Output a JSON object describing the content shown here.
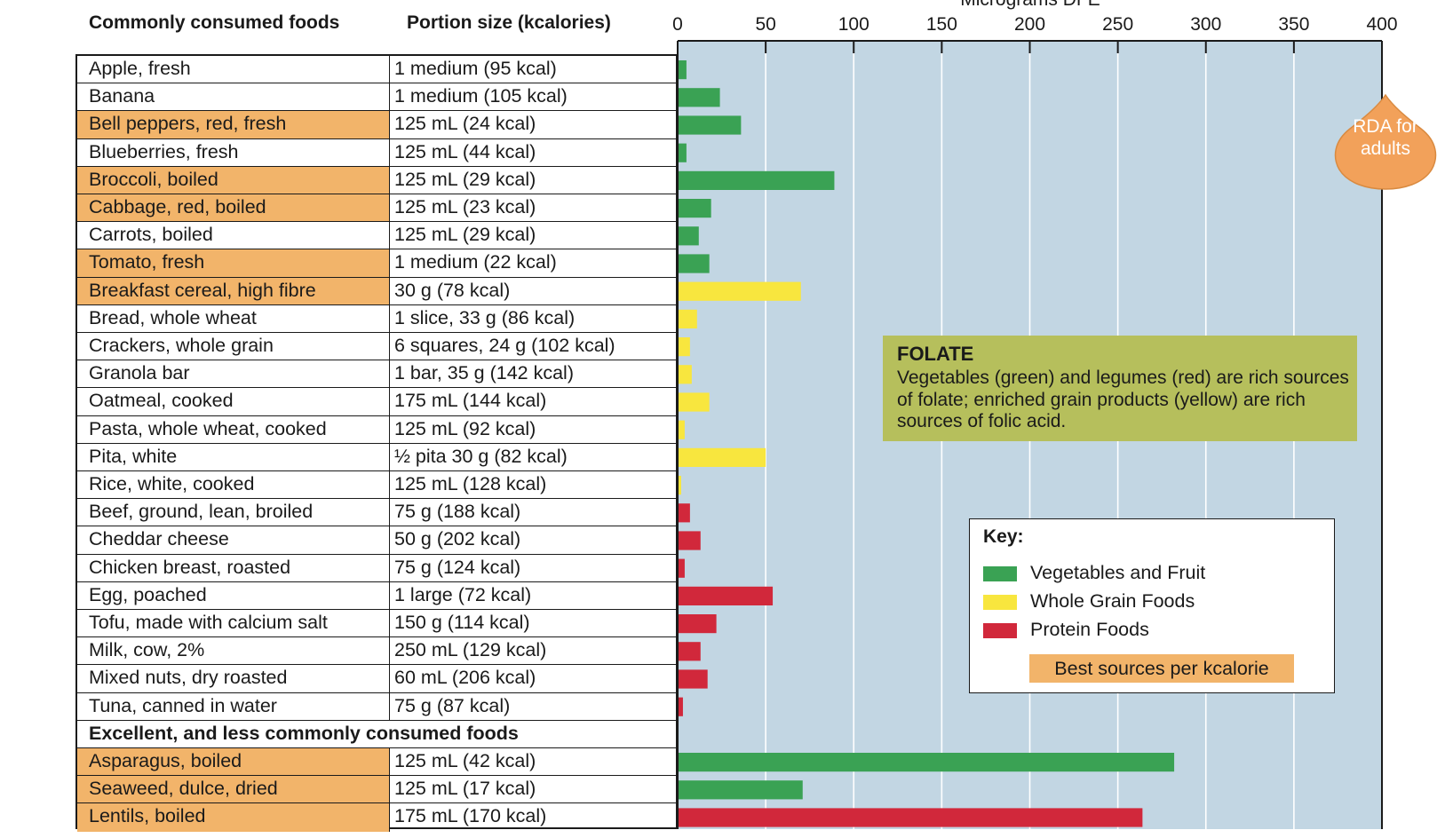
{
  "headers": {
    "food": "Commonly consumed foods",
    "portion": "Portion size (kcalories)"
  },
  "chart_data": {
    "type": "bar",
    "orientation": "horizontal",
    "xlabel": "Micrograms DFE",
    "xlim": [
      0,
      400
    ],
    "xticks": [
      0,
      50,
      100,
      150,
      200,
      250,
      300,
      350,
      400
    ],
    "rda_value": 400,
    "rda_label": "RDA for adults",
    "rows": [
      {
        "food": "Apple, fresh",
        "portion": "1 medium (95 kcal)",
        "value": 5,
        "group": "veg",
        "best": false
      },
      {
        "food": "Banana",
        "portion": "1 medium (105 kcal)",
        "value": 24,
        "group": "veg",
        "best": false
      },
      {
        "food": "Bell peppers, red, fresh",
        "portion": "125 mL (24 kcal)",
        "value": 36,
        "group": "veg",
        "best": true
      },
      {
        "food": "Blueberries, fresh",
        "portion": "125 mL (44 kcal)",
        "value": 5,
        "group": "veg",
        "best": false
      },
      {
        "food": "Broccoli, boiled",
        "portion": "125 mL (29 kcal)",
        "value": 89,
        "group": "veg",
        "best": true
      },
      {
        "food": "Cabbage, red, boiled",
        "portion": "125 mL (23 kcal)",
        "value": 19,
        "group": "veg",
        "best": true
      },
      {
        "food": "Carrots, boiled",
        "portion": "125 mL (29 kcal)",
        "value": 12,
        "group": "veg",
        "best": false
      },
      {
        "food": "Tomato, fresh",
        "portion": "1 medium (22 kcal)",
        "value": 18,
        "group": "veg",
        "best": true
      },
      {
        "food": "Breakfast cereal, high fibre",
        "portion": "30 g (78 kcal)",
        "value": 70,
        "group": "grain",
        "best": true
      },
      {
        "food": "Bread, whole wheat",
        "portion": "1 slice, 33 g (86 kcal)",
        "value": 11,
        "group": "grain",
        "best": false
      },
      {
        "food": "Crackers, whole grain",
        "portion": "6 squares, 24 g (102 kcal)",
        "value": 7,
        "group": "grain",
        "best": false
      },
      {
        "food": "Granola bar",
        "portion": "1 bar, 35 g (142 kcal)",
        "value": 8,
        "group": "grain",
        "best": false
      },
      {
        "food": "Oatmeal, cooked",
        "portion": "175 mL (144 kcal)",
        "value": 18,
        "group": "grain",
        "best": false
      },
      {
        "food": "Pasta, whole wheat, cooked",
        "portion": "125 mL (92 kcal)",
        "value": 4,
        "group": "grain",
        "best": false
      },
      {
        "food": "Pita, white",
        "portion": "½ pita 30 g (82 kcal)",
        "value": 50,
        "group": "grain",
        "best": false
      },
      {
        "food": "Rice, white, cooked",
        "portion": "125 mL (128 kcal)",
        "value": 2,
        "group": "grain",
        "best": false
      },
      {
        "food": "Beef, ground, lean, broiled",
        "portion": "75 g (188 kcal)",
        "value": 7,
        "group": "protein",
        "best": false
      },
      {
        "food": "Cheddar cheese",
        "portion": "50 g (202 kcal)",
        "value": 13,
        "group": "protein",
        "best": false
      },
      {
        "food": "Chicken breast, roasted",
        "portion": "75 g (124 kcal)",
        "value": 4,
        "group": "protein",
        "best": false
      },
      {
        "food": "Egg, poached",
        "portion": "1 large (72 kcal)",
        "value": 54,
        "group": "protein",
        "best": false
      },
      {
        "food": "Tofu, made with calcium salt",
        "portion": "150 g (114 kcal)",
        "value": 22,
        "group": "protein",
        "best": false
      },
      {
        "food": "Milk, cow, 2%",
        "portion": "250 mL (129 kcal)",
        "value": 13,
        "group": "protein",
        "best": false
      },
      {
        "food": "Mixed nuts, dry roasted",
        "portion": "60 mL (206 kcal)",
        "value": 17,
        "group": "protein",
        "best": false
      },
      {
        "food": "Tuna, canned in water",
        "portion": "75 g (87 kcal)",
        "value": 3,
        "group": "protein",
        "best": false
      },
      {
        "section": "Excellent, and less commonly consumed foods"
      },
      {
        "food": "Asparagus, boiled",
        "portion": "125 mL (42 kcal)",
        "value": 282,
        "group": "veg",
        "best": true
      },
      {
        "food": "Seaweed, dulce, dried",
        "portion": "125 mL (17 kcal)",
        "value": 71,
        "group": "veg",
        "best": true
      },
      {
        "food": "Lentils, boiled",
        "portion": "175 mL (170 kcal)",
        "value": 264,
        "group": "protein",
        "best": true
      }
    ]
  },
  "colors": {
    "veg": "#3aa254",
    "grain": "#f8e63e",
    "protein": "#d1283b",
    "best": "#f2b46a",
    "chart_bg": "#c2d6e3",
    "callout": "#b6bf5c",
    "rda": "#f2a15a"
  },
  "key": {
    "title": "Key:",
    "items": [
      {
        "group": "veg",
        "label": "Vegetables and Fruit"
      },
      {
        "group": "grain",
        "label": "Whole Grain Foods"
      },
      {
        "group": "protein",
        "label": "Protein Foods"
      }
    ],
    "best_label": "Best sources per kcalorie"
  },
  "folate": {
    "title": "FOLATE",
    "text": "Vegetables (green) and legumes (red) are rich sources of folate; enriched grain products (yellow) are rich sources of folic acid."
  }
}
